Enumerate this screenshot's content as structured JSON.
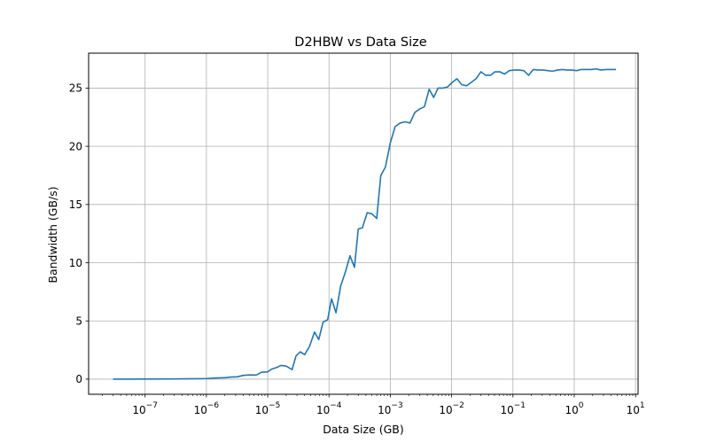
{
  "chart_data": {
    "type": "line",
    "title": "D2HBW vs Data Size",
    "xlabel": "Data Size (GB)",
    "ylabel": "Bandwidth (GB/s)",
    "x_scale": "log",
    "x_range": [
      1.2e-08,
      11
    ],
    "ylim": [
      -1.3,
      28.0
    ],
    "grid": true,
    "line_color": "#1f77b4",
    "x_ticks": [
      {
        "value": 1e-07,
        "base": "10",
        "exp": "−7"
      },
      {
        "value": 1e-06,
        "base": "10",
        "exp": "−6"
      },
      {
        "value": 1e-05,
        "base": "10",
        "exp": "−5"
      },
      {
        "value": 0.0001,
        "base": "10",
        "exp": "−4"
      },
      {
        "value": 0.001,
        "base": "10",
        "exp": "−3"
      },
      {
        "value": 0.01,
        "base": "10",
        "exp": "−2"
      },
      {
        "value": 0.1,
        "base": "10",
        "exp": "−1"
      },
      {
        "value": 1,
        "base": "10",
        "exp": "0"
      },
      {
        "value": 10,
        "base": "10",
        "exp": "1"
      }
    ],
    "y_ticks": [
      {
        "value": 0,
        "label": "0"
      },
      {
        "value": 5,
        "label": "5"
      },
      {
        "value": 10,
        "label": "10"
      },
      {
        "value": 15,
        "label": "15"
      },
      {
        "value": 20,
        "label": "20"
      },
      {
        "value": 25,
        "label": "25"
      }
    ],
    "series": [
      {
        "points": [
          [
            3e-08,
            0.0
          ],
          [
            1e-07,
            0.01
          ],
          [
            3e-07,
            0.02
          ],
          [
            1e-06,
            0.05
          ],
          [
            1.5e-06,
            0.1
          ],
          [
            2e-06,
            0.12
          ],
          [
            2.5e-06,
            0.18
          ],
          [
            3.2e-06,
            0.2
          ],
          [
            4e-06,
            0.32
          ],
          [
            5e-06,
            0.36
          ],
          [
            6.5e-06,
            0.35
          ],
          [
            8e-06,
            0.6
          ],
          [
            1e-05,
            0.62
          ],
          [
            1.15e-05,
            0.85
          ],
          [
            1.4e-05,
            1.0
          ],
          [
            1.65e-05,
            1.18
          ],
          [
            2e-05,
            1.12
          ],
          [
            2.5e-05,
            0.82
          ],
          [
            2.9e-05,
            2.0
          ],
          [
            3.4e-05,
            2.35
          ],
          [
            4e-05,
            2.1
          ],
          [
            4.8e-05,
            2.8
          ],
          [
            5.8e-05,
            4.05
          ],
          [
            6.8e-05,
            3.4
          ],
          [
            8e-05,
            4.9
          ],
          [
            9.5e-05,
            5.1
          ],
          [
            0.00011,
            6.9
          ],
          [
            0.00013,
            5.7
          ],
          [
            0.000155,
            8.0
          ],
          [
            0.000185,
            9.2
          ],
          [
            0.00022,
            10.6
          ],
          [
            0.00026,
            9.6
          ],
          [
            0.0003,
            12.9
          ],
          [
            0.00035,
            13.0
          ],
          [
            0.00042,
            14.3
          ],
          [
            0.0005,
            14.2
          ],
          [
            0.0006,
            13.8
          ],
          [
            0.0007,
            17.5
          ],
          [
            0.00083,
            18.2
          ],
          [
            0.001,
            20.3
          ],
          [
            0.0012,
            21.7
          ],
          [
            0.00145,
            22.0
          ],
          [
            0.00175,
            22.1
          ],
          [
            0.0021,
            22.0
          ],
          [
            0.0025,
            22.9
          ],
          [
            0.003,
            23.2
          ],
          [
            0.0036,
            23.4
          ],
          [
            0.0043,
            24.9
          ],
          [
            0.0051,
            24.2
          ],
          [
            0.006,
            25.0
          ],
          [
            0.0072,
            25.0
          ],
          [
            0.0086,
            25.1
          ],
          [
            0.0103,
            25.5
          ],
          [
            0.0122,
            25.8
          ],
          [
            0.0146,
            25.3
          ],
          [
            0.0175,
            25.2
          ],
          [
            0.021,
            25.5
          ],
          [
            0.025,
            25.8
          ],
          [
            0.03,
            26.4
          ],
          [
            0.036,
            26.1
          ],
          [
            0.043,
            26.1
          ],
          [
            0.051,
            26.4
          ],
          [
            0.061,
            26.4
          ],
          [
            0.073,
            26.2
          ],
          [
            0.087,
            26.5
          ],
          [
            0.105,
            26.55
          ],
          [
            0.125,
            26.55
          ],
          [
            0.15,
            26.5
          ],
          [
            0.18,
            26.1
          ],
          [
            0.215,
            26.6
          ],
          [
            0.26,
            26.55
          ],
          [
            0.31,
            26.55
          ],
          [
            0.37,
            26.5
          ],
          [
            0.44,
            26.45
          ],
          [
            0.53,
            26.55
          ],
          [
            0.63,
            26.6
          ],
          [
            0.76,
            26.55
          ],
          [
            0.91,
            26.55
          ],
          [
            1.1,
            26.5
          ],
          [
            1.3,
            26.6
          ],
          [
            1.6,
            26.6
          ],
          [
            1.9,
            26.6
          ],
          [
            2.3,
            26.65
          ],
          [
            2.7,
            26.55
          ],
          [
            3.3,
            26.6
          ],
          [
            4.0,
            26.6
          ],
          [
            4.8,
            26.6
          ]
        ]
      }
    ]
  }
}
